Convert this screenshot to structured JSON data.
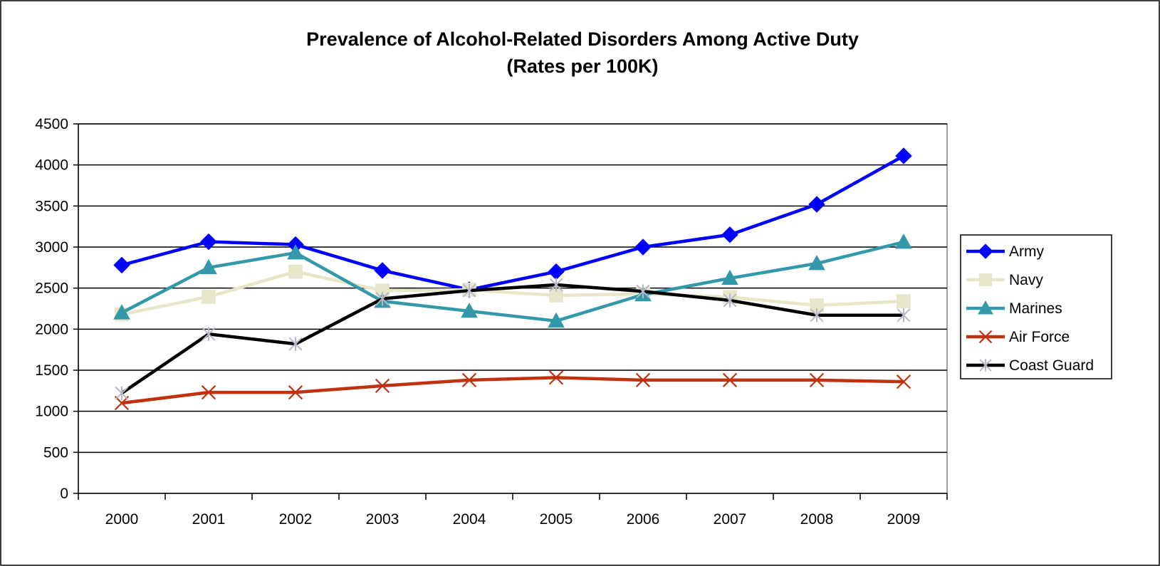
{
  "chart_data": {
    "type": "line",
    "title": "Prevalence of Alcohol-Related Disorders Among Active Duty",
    "subtitle": "(Rates per 100K)",
    "xlabel": "",
    "ylabel": "",
    "categories": [
      "2000",
      "2001",
      "2002",
      "2003",
      "2004",
      "2005",
      "2006",
      "2007",
      "2008",
      "2009"
    ],
    "ylim": [
      0,
      4500
    ],
    "yticks": [
      0,
      500,
      1000,
      1500,
      2000,
      2500,
      3000,
      3500,
      4000,
      4500
    ],
    "grid": "horizontal",
    "legend_position": "right",
    "series": [
      {
        "name": "Army",
        "color": "#0000FF",
        "marker": "diamond",
        "values": [
          2780,
          3065,
          3030,
          2715,
          2480,
          2700,
          3000,
          3150,
          3520,
          4110
        ]
      },
      {
        "name": "Navy",
        "color": "#E8E6C8",
        "marker": "square",
        "values": [
          2180,
          2395,
          2700,
          2470,
          2480,
          2410,
          2430,
          2390,
          2290,
          2340
        ]
      },
      {
        "name": "Marines",
        "color": "#3399AA",
        "marker": "triangle",
        "values": [
          2200,
          2750,
          2930,
          2340,
          2220,
          2100,
          2420,
          2620,
          2800,
          3060
        ]
      },
      {
        "name": "Air Force",
        "color": "#C0320F",
        "marker": "x",
        "values": [
          1100,
          1230,
          1230,
          1310,
          1380,
          1410,
          1380,
          1380,
          1380,
          1360
        ]
      },
      {
        "name": "Coast Guard",
        "color": "#000000",
        "marker": "star",
        "marker_color": "#B8B8C8",
        "values": [
          1220,
          1940,
          1820,
          2370,
          2470,
          2540,
          2460,
          2350,
          2170,
          2170
        ]
      }
    ]
  }
}
